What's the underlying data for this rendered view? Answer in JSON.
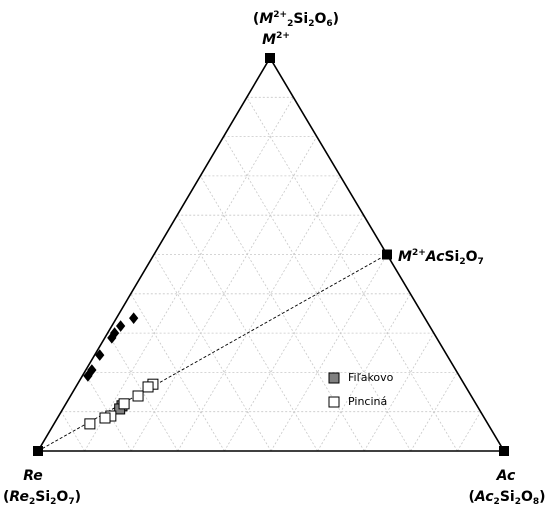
{
  "chart_data": {
    "type": "ternary",
    "grid": true,
    "grid_step": 10,
    "vertices": {
      "top": {
        "label": [
          {
            "text": "M",
            "style": "i"
          },
          {
            "text": "2+",
            "style": "sup"
          }
        ],
        "formula": [
          {
            "text": "("
          },
          {
            "text": "M",
            "style": "i"
          },
          {
            "text": "2+",
            "style": "sup"
          },
          {
            "text": "2",
            "style": "sub"
          },
          {
            "text": "Si"
          },
          {
            "text": "2",
            "style": "sub"
          },
          {
            "text": "O"
          },
          {
            "text": "6",
            "style": "sub"
          },
          {
            "text": ")"
          }
        ]
      },
      "left": {
        "label": [
          {
            "text": "Re",
            "style": "i"
          }
        ],
        "formula": [
          {
            "text": "("
          },
          {
            "text": "Re",
            "style": "i"
          },
          {
            "text": "2",
            "style": "sub"
          },
          {
            "text": "Si"
          },
          {
            "text": "2",
            "style": "sub"
          },
          {
            "text": "O"
          },
          {
            "text": "7",
            "style": "sub"
          },
          {
            "text": ")"
          }
        ]
      },
      "right": {
        "label": [
          {
            "text": "Ac",
            "style": "i"
          }
        ],
        "formula": [
          {
            "text": "("
          },
          {
            "text": "Ac",
            "style": "i"
          },
          {
            "text": "2",
            "style": "sub"
          },
          {
            "text": "Si"
          },
          {
            "text": "2",
            "style": "sub"
          },
          {
            "text": "O"
          },
          {
            "text": "8",
            "style": "sub"
          },
          {
            "text": ")"
          }
        ]
      }
    },
    "midpoint": {
      "M": 50,
      "Ac": 50,
      "label": [
        {
          "text": "M",
          "style": "i"
        },
        {
          "text": "2+",
          "style": "sup"
        },
        {
          "text": "Ac",
          "style": "i"
        },
        {
          "text": "Si"
        },
        {
          "text": "2",
          "style": "sub"
        },
        {
          "text": "O"
        },
        {
          "text": "7",
          "style": "sub"
        }
      ]
    },
    "series": [
      {
        "color": "#000000",
        "marker": "diamond",
        "M": [
          33.8,
          31.8,
          30.0,
          28.8,
          24.4,
          20.6,
          19.1
        ],
        "Ac": [
          3.7,
          1.9,
          1.5,
          1.5,
          1.1,
          1.3,
          1.2
        ]
      },
      {
        "name": "Fiľakovo",
        "color": "#808080",
        "marker": "square",
        "M": [
          11.5,
          10.7
        ],
        "Ac": [
          12.3,
          12.2
        ]
      },
      {
        "name": "Pinciná",
        "color": "#ffffff",
        "marker": "square",
        "M": [
          17.0,
          16.3,
          14.0,
          12.0,
          8.9,
          8.4,
          6.9
        ],
        "Ac": [
          16.2,
          15.5,
          14.5,
          12.5,
          11.2,
          10.2,
          7.7
        ]
      }
    ]
  }
}
